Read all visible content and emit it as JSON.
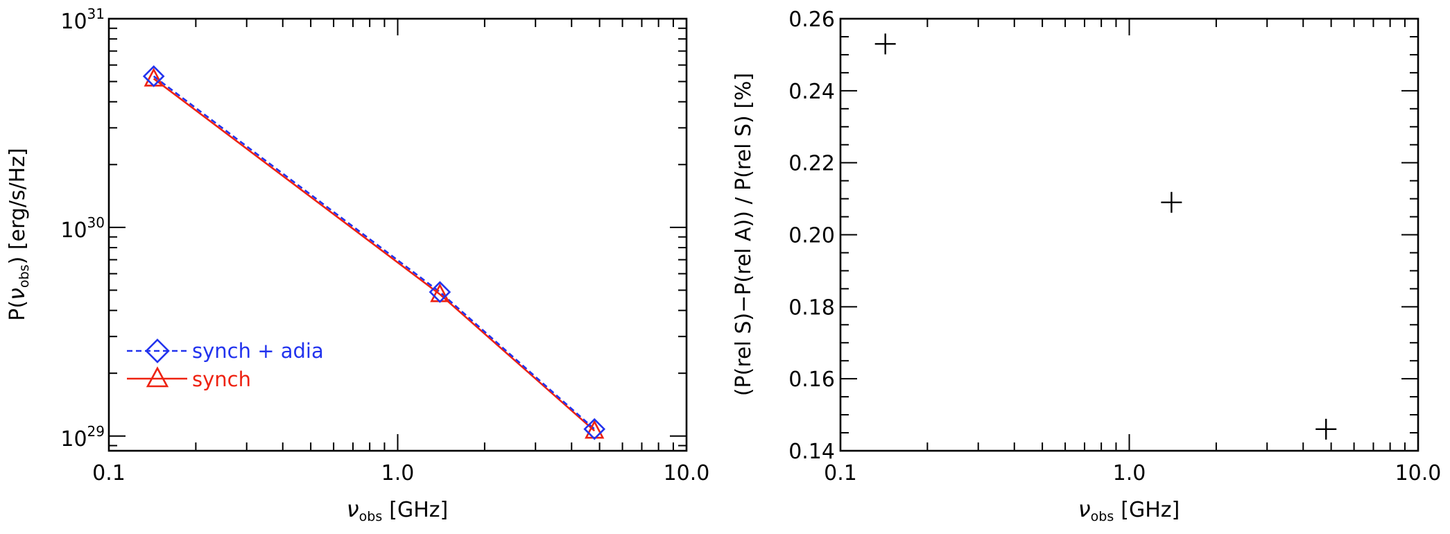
{
  "chart_data": [
    {
      "type": "line",
      "xscale": "log",
      "yscale": "log",
      "xlim": [
        0.1,
        10.0
      ],
      "ylim": [
        8.5e+28,
        1e+31
      ],
      "xticks": [
        "0.1",
        "1.0",
        "10.0"
      ],
      "yticks": [
        {
          "value": 1e+29,
          "base": "10",
          "exp": "29"
        },
        {
          "value": 1e+30,
          "base": "10",
          "exp": "30"
        },
        {
          "value": 1e+31,
          "base": "10",
          "exp": "31"
        }
      ],
      "xlabel": {
        "sym": "ν",
        "sub": "obs",
        "unit": "[GHz]"
      },
      "ylabel": {
        "pre": "P(",
        "sym": "ν",
        "sub": "obs",
        "post": ")  [erg/s/Hz]"
      },
      "legend": {
        "placement": "lower-left"
      },
      "series": [
        {
          "name": "synch + adia",
          "color": "#2233ee",
          "linestyle": "dashed",
          "marker": "diamond",
          "x": [
            0.143,
            1.4,
            4.8
          ],
          "y": [
            5.3e+30,
            4.9e+29,
            1.08e+29
          ]
        },
        {
          "name": "synch",
          "color": "#ee2211",
          "linestyle": "solid",
          "marker": "triangle",
          "x": [
            0.143,
            1.4,
            4.8
          ],
          "y": [
            5.16e+30,
            4.78e+29,
            1.06e+29
          ]
        }
      ]
    },
    {
      "type": "scatter",
      "xscale": "log",
      "yscale": "linear",
      "xlim": [
        0.1,
        10.0
      ],
      "ylim": [
        0.14,
        0.26
      ],
      "xticks": [
        "0.1",
        "1.0",
        "10.0"
      ],
      "yticks": [
        "0.14",
        "0.16",
        "0.18",
        "0.20",
        "0.22",
        "0.24",
        "0.26"
      ],
      "xlabel": {
        "sym": "ν",
        "sub": "obs",
        "unit": "[GHz]"
      },
      "ylabel": "(P(rel S)−P(rel A)) / P(rel S) [%]",
      "series": [
        {
          "color": "#000000",
          "marker": "plus",
          "x": [
            0.143,
            1.4,
            4.8
          ],
          "y": [
            0.253,
            0.209,
            0.146
          ]
        }
      ]
    }
  ]
}
